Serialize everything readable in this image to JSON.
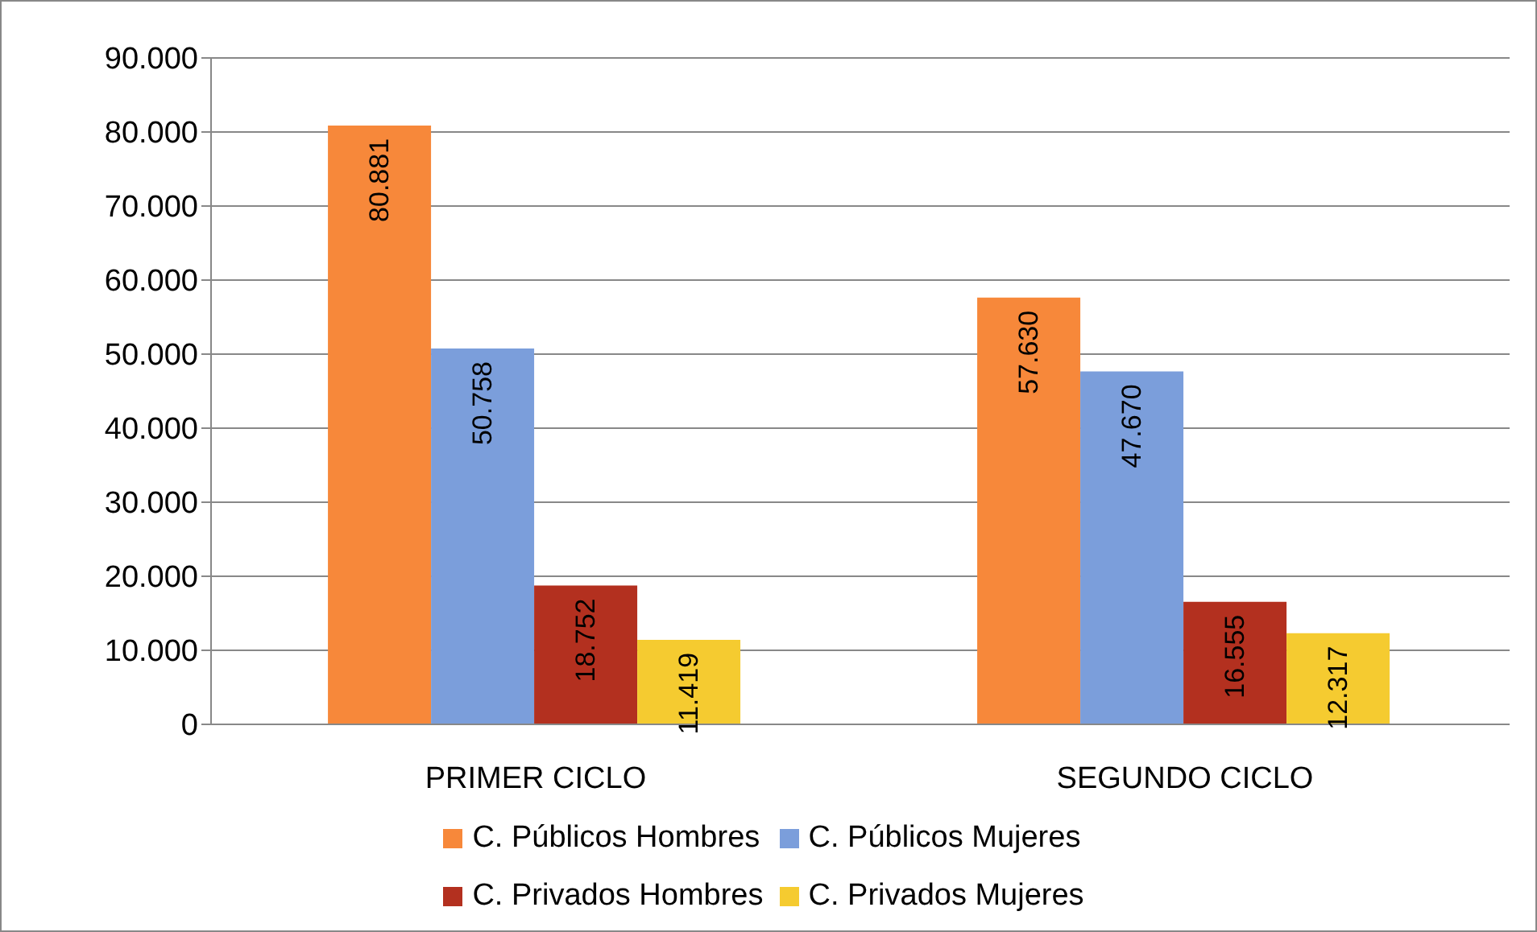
{
  "chart_data": {
    "type": "bar",
    "categories": [
      "PRIMER CICLO",
      "SEGUNDO CICLO"
    ],
    "series": [
      {
        "name": "C. Públicos Hombres",
        "color": "#f7883a",
        "values": [
          80881,
          57630
        ],
        "value_labels": [
          "80.881",
          "57.630"
        ]
      },
      {
        "name": "C. Públicos Mujeres",
        "color": "#7b9edb",
        "values": [
          50758,
          47670
        ],
        "value_labels": [
          "50.758",
          "47.670"
        ]
      },
      {
        "name": "C. Privados Hombres",
        "color": "#b3301f",
        "values": [
          18752,
          16555
        ],
        "value_labels": [
          "18.752",
          "16.555"
        ]
      },
      {
        "name": "C. Privados Mujeres",
        "color": "#f5cb30",
        "values": [
          11419,
          12317
        ],
        "value_labels": [
          "11.419",
          "12.317"
        ]
      }
    ],
    "ylim": [
      0,
      90000
    ],
    "yticks": [
      0,
      {
        "value": 10000,
        "label": "10.000"
      },
      {
        "value": 20000,
        "label": "20.000"
      },
      {
        "value": 30000,
        "label": "30.000"
      },
      {
        "value": 40000,
        "label": "40.000"
      },
      {
        "value": 50000,
        "label": "50.000"
      },
      {
        "value": 60000,
        "label": "60.000"
      },
      {
        "value": 70000,
        "label": "70.000"
      },
      {
        "value": 80000,
        "label": "80.000"
      },
      {
        "value": 90000,
        "label": "90.000"
      }
    ],
    "grid": "y",
    "legend": "bottom"
  }
}
